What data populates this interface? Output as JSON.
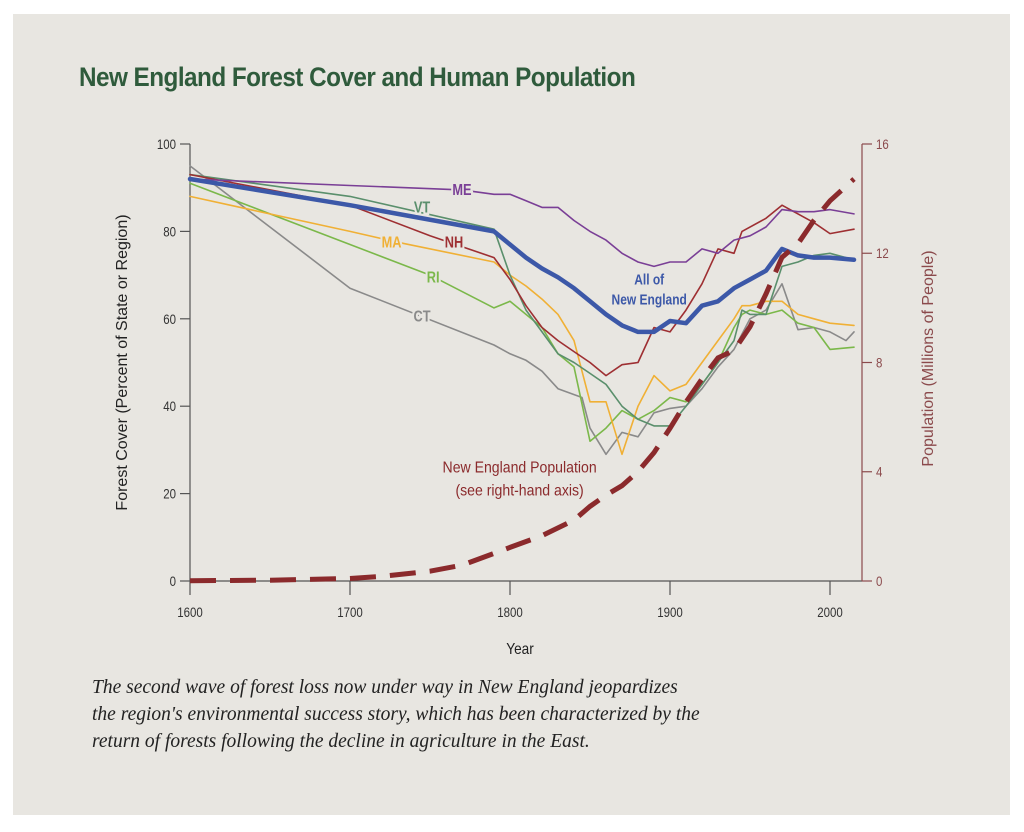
{
  "title": "New England Forest Cover and Human Population",
  "caption": [
    "The second wave of forest loss now under way in New England jeopardizes",
    "the region's environmental success story, which has been characterized by the",
    "return of forests following the decline in agriculture in the East."
  ],
  "chart_data": {
    "type": "line",
    "title": "New England Forest Cover and Human Population",
    "xlabel": "Year",
    "ylabel": "Forest Cover (Percent of State or Region)",
    "y2label": "Population (Millions of People)",
    "xlim": [
      1600,
      2020
    ],
    "ylim": [
      0,
      100
    ],
    "y2lim": [
      0,
      16
    ],
    "xticks": [
      1600,
      1700,
      1800,
      1900,
      2000
    ],
    "yticks": [
      0,
      20,
      40,
      60,
      80,
      100
    ],
    "y2ticks": [
      0,
      4,
      8,
      12,
      16
    ],
    "grid": false,
    "legend": "inline labels",
    "series": [
      {
        "name": "CT",
        "label": "CT",
        "color": "#8a8a8a",
        "width": 1.6,
        "label_at": [
          1745,
          60.5
        ],
        "points": [
          [
            1600,
            95
          ],
          [
            1700,
            67
          ],
          [
            1790,
            54
          ],
          [
            1800,
            52
          ],
          [
            1810,
            50.5
          ],
          [
            1820,
            48
          ],
          [
            1830,
            44
          ],
          [
            1845,
            42
          ],
          [
            1850,
            35
          ],
          [
            1860,
            29
          ],
          [
            1870,
            34
          ],
          [
            1880,
            33
          ],
          [
            1890,
            38.5
          ],
          [
            1900,
            39.5
          ],
          [
            1910,
            40
          ],
          [
            1920,
            44
          ],
          [
            1930,
            49
          ],
          [
            1940,
            53
          ],
          [
            1950,
            60
          ],
          [
            1960,
            62
          ],
          [
            1970,
            68
          ],
          [
            1980,
            57.5
          ],
          [
            1990,
            58
          ],
          [
            2000,
            57
          ],
          [
            2010,
            55
          ],
          [
            2015,
            57
          ]
        ]
      },
      {
        "name": "RI",
        "label": "RI",
        "color": "#7bb84a",
        "width": 1.6,
        "label_at": [
          1752,
          69.5
        ],
        "points": [
          [
            1600,
            91
          ],
          [
            1750,
            70
          ],
          [
            1790,
            62.5
          ],
          [
            1800,
            64
          ],
          [
            1810,
            61
          ],
          [
            1820,
            58
          ],
          [
            1830,
            52
          ],
          [
            1840,
            49
          ],
          [
            1850,
            32
          ],
          [
            1860,
            35
          ],
          [
            1870,
            39
          ],
          [
            1880,
            37
          ],
          [
            1890,
            39
          ],
          [
            1900,
            42
          ],
          [
            1910,
            41
          ],
          [
            1920,
            45
          ],
          [
            1930,
            50
          ],
          [
            1940,
            58
          ],
          [
            1945,
            61
          ],
          [
            1950,
            62
          ],
          [
            1960,
            61
          ],
          [
            1970,
            62
          ],
          [
            1980,
            59
          ],
          [
            1990,
            58
          ],
          [
            2000,
            53
          ],
          [
            2015,
            53.5
          ]
        ]
      },
      {
        "name": "MA",
        "label": "MA",
        "color": "#f0b035",
        "width": 1.6,
        "label_at": [
          1726,
          77.5
        ],
        "points": [
          [
            1600,
            88
          ],
          [
            1700,
            80
          ],
          [
            1730,
            77.5
          ],
          [
            1790,
            73
          ],
          [
            1800,
            70
          ],
          [
            1810,
            67.5
          ],
          [
            1820,
            64.5
          ],
          [
            1830,
            61
          ],
          [
            1840,
            55
          ],
          [
            1850,
            41
          ],
          [
            1860,
            41
          ],
          [
            1870,
            29
          ],
          [
            1880,
            40
          ],
          [
            1890,
            47
          ],
          [
            1900,
            43.5
          ],
          [
            1910,
            45
          ],
          [
            1920,
            50
          ],
          [
            1930,
            55
          ],
          [
            1940,
            60
          ],
          [
            1945,
            63
          ],
          [
            1950,
            63
          ],
          [
            1960,
            64
          ],
          [
            1970,
            64
          ],
          [
            1980,
            61
          ],
          [
            1990,
            60
          ],
          [
            2000,
            59
          ],
          [
            2015,
            58.5
          ]
        ]
      },
      {
        "name": "VT",
        "label": "VT",
        "color": "#5a8f6c",
        "width": 1.6,
        "label_at": [
          1745,
          85.5
        ],
        "points": [
          [
            1600,
            93
          ],
          [
            1700,
            88
          ],
          [
            1790,
            80.5
          ],
          [
            1800,
            70
          ],
          [
            1810,
            62
          ],
          [
            1820,
            57
          ],
          [
            1830,
            52
          ],
          [
            1840,
            50
          ],
          [
            1850,
            47.5
          ],
          [
            1860,
            45
          ],
          [
            1870,
            40
          ],
          [
            1880,
            37
          ],
          [
            1890,
            35.5
          ],
          [
            1900,
            35.5
          ],
          [
            1910,
            40
          ],
          [
            1920,
            45
          ],
          [
            1930,
            50
          ],
          [
            1940,
            55
          ],
          [
            1945,
            62
          ],
          [
            1950,
            61
          ],
          [
            1960,
            61
          ],
          [
            1970,
            72
          ],
          [
            1980,
            73
          ],
          [
            1990,
            74.5
          ],
          [
            2000,
            75
          ],
          [
            2015,
            73.5
          ]
        ]
      },
      {
        "name": "NH",
        "label": "NH",
        "color": "#9e2f32",
        "width": 1.6,
        "label_at": [
          1765,
          77.5
        ],
        "points": [
          [
            1600,
            93
          ],
          [
            1700,
            86
          ],
          [
            1750,
            79
          ],
          [
            1790,
            74
          ],
          [
            1800,
            69
          ],
          [
            1810,
            63
          ],
          [
            1820,
            58
          ],
          [
            1830,
            55
          ],
          [
            1840,
            52.5
          ],
          [
            1850,
            50
          ],
          [
            1860,
            47
          ],
          [
            1870,
            49.5
          ],
          [
            1880,
            50
          ],
          [
            1890,
            58
          ],
          [
            1900,
            57
          ],
          [
            1910,
            62
          ],
          [
            1920,
            68
          ],
          [
            1930,
            76
          ],
          [
            1940,
            75
          ],
          [
            1945,
            80
          ],
          [
            1960,
            83
          ],
          [
            1970,
            86
          ],
          [
            1980,
            84
          ],
          [
            1990,
            82
          ],
          [
            2000,
            79.5
          ],
          [
            2015,
            80.5
          ]
        ]
      },
      {
        "name": "ME",
        "label": "ME",
        "color": "#7a3f96",
        "width": 1.6,
        "label_at": [
          1770,
          89.5
        ],
        "points": [
          [
            1600,
            92
          ],
          [
            1700,
            90.5
          ],
          [
            1770,
            89.5
          ],
          [
            1790,
            88.5
          ],
          [
            1800,
            88.5
          ],
          [
            1810,
            87
          ],
          [
            1820,
            85.5
          ],
          [
            1830,
            85.5
          ],
          [
            1840,
            82.5
          ],
          [
            1850,
            80
          ],
          [
            1860,
            78
          ],
          [
            1870,
            75
          ],
          [
            1880,
            73
          ],
          [
            1890,
            72
          ],
          [
            1900,
            73
          ],
          [
            1910,
            73
          ],
          [
            1920,
            76
          ],
          [
            1930,
            75
          ],
          [
            1940,
            78
          ],
          [
            1950,
            79
          ],
          [
            1960,
            81
          ],
          [
            1970,
            85
          ],
          [
            1980,
            84.5
          ],
          [
            1990,
            84.5
          ],
          [
            2000,
            85
          ],
          [
            2015,
            84
          ]
        ]
      },
      {
        "name": "All of New England",
        "label": "All of|New England",
        "color": "#3c58a8",
        "width": 4.5,
        "label_at": [
          1887,
          69
        ],
        "points": [
          [
            1600,
            92
          ],
          [
            1700,
            86
          ],
          [
            1790,
            80
          ],
          [
            1800,
            77
          ],
          [
            1810,
            74
          ],
          [
            1820,
            71.5
          ],
          [
            1830,
            69.5
          ],
          [
            1840,
            67
          ],
          [
            1850,
            64
          ],
          [
            1860,
            61
          ],
          [
            1870,
            58.5
          ],
          [
            1880,
            57
          ],
          [
            1890,
            57
          ],
          [
            1900,
            59.5
          ],
          [
            1910,
            59
          ],
          [
            1920,
            63
          ],
          [
            1930,
            64
          ],
          [
            1940,
            67
          ],
          [
            1950,
            69
          ],
          [
            1960,
            71
          ],
          [
            1970,
            76
          ],
          [
            1980,
            74.5
          ],
          [
            1990,
            74
          ],
          [
            2000,
            74
          ],
          [
            2015,
            73.5
          ]
        ]
      }
    ],
    "population": {
      "name": "New England Population",
      "label_lines": [
        "New England Population",
        "(see right-hand axis)"
      ],
      "label_at": [
        1806,
        23
      ],
      "axis": "right",
      "color": "#8b2a2c",
      "points": [
        [
          1600,
          0.01
        ],
        [
          1650,
          0.03
        ],
        [
          1700,
          0.09
        ],
        [
          1720,
          0.17
        ],
        [
          1750,
          0.36
        ],
        [
          1770,
          0.58
        ],
        [
          1790,
          1.01
        ],
        [
          1800,
          1.23
        ],
        [
          1820,
          1.66
        ],
        [
          1840,
          2.23
        ],
        [
          1850,
          2.73
        ],
        [
          1860,
          3.14
        ],
        [
          1870,
          3.49
        ],
        [
          1880,
          4.01
        ],
        [
          1890,
          4.7
        ],
        [
          1900,
          5.59
        ],
        [
          1910,
          6.55
        ],
        [
          1920,
          7.4
        ],
        [
          1930,
          8.17
        ],
        [
          1940,
          8.44
        ],
        [
          1950,
          9.31
        ],
        [
          1960,
          10.51
        ],
        [
          1970,
          11.85
        ],
        [
          1980,
          12.35
        ],
        [
          1990,
          13.21
        ],
        [
          2000,
          13.92
        ],
        [
          2015,
          14.72
        ]
      ]
    }
  }
}
